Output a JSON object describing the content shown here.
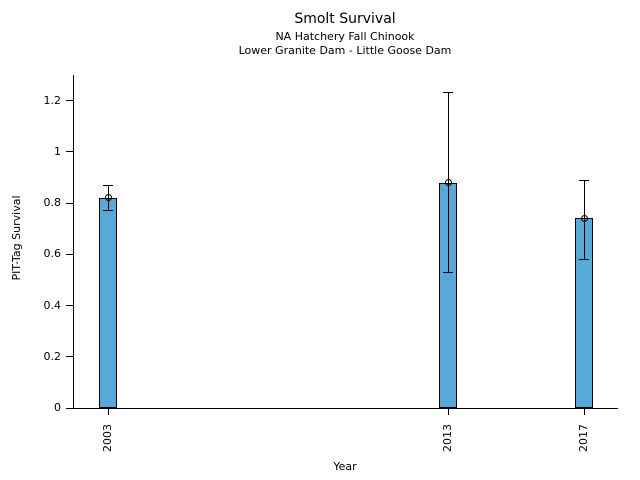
{
  "chart_data": {
    "type": "bar",
    "title": "Smolt Survival",
    "subtitle_lines": [
      "NA Hatchery Fall Chinook",
      "Lower Granite Dam - Little Goose Dam"
    ],
    "xlabel": "Year",
    "ylabel": "PIT-Tag Survival",
    "categories": [
      "2003",
      "2013",
      "2017"
    ],
    "x_years": [
      2003,
      2013,
      2017
    ],
    "series": [
      {
        "name": "PIT-Tag Survival",
        "values": [
          0.82,
          0.88,
          0.74
        ],
        "error_low": [
          0.77,
          0.53,
          0.58
        ],
        "error_high": [
          0.87,
          1.23,
          0.89
        ]
      }
    ],
    "yticks": [
      0,
      0.2,
      0.4,
      0.6,
      0.8,
      1,
      1.2
    ],
    "ytick_labels": [
      "0",
      "0.2",
      "0.4",
      "0.6",
      "0.8",
      "1",
      "1.2"
    ],
    "ylim": [
      0,
      1.3
    ],
    "xlim": [
      2002,
      2018
    ],
    "xtick_rotation": 90,
    "grid": false,
    "legend": "none",
    "marker": "open-circle",
    "colors": {
      "bar_fill": "#58A9D7",
      "bar_edge": "#000000",
      "error_bar": "#000000",
      "marker_edge": "#000000",
      "text": "#000000",
      "background": "#ffffff"
    }
  }
}
